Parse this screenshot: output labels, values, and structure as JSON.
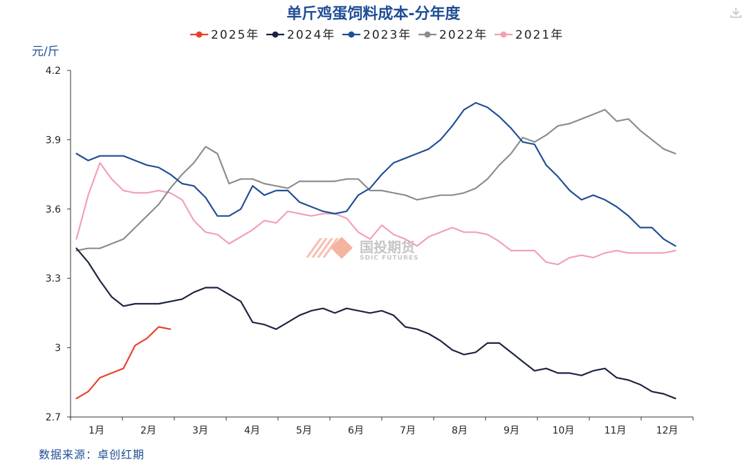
{
  "chart_data": {
    "type": "line",
    "title": "单斤鸡蛋饲料成本-分年度",
    "ylabel": "元/斤",
    "ylim": [
      2.7,
      4.2
    ],
    "yticks": [
      {
        "value": 4.2,
        "label": "4.2"
      },
      {
        "value": 3.9,
        "label": "3.9"
      },
      {
        "value": 3.6,
        "label": "3.6"
      },
      {
        "value": 3.3,
        "label": "3.3"
      },
      {
        "value": 3.0,
        "label": "3"
      },
      {
        "value": 2.7,
        "label": "2.7"
      }
    ],
    "x_weeks": 53,
    "months": [
      "1月",
      "2月",
      "3月",
      "4月",
      "5月",
      "6月",
      "7月",
      "8月",
      "9月",
      "10月",
      "11月",
      "12月"
    ],
    "legend_position": "top",
    "grid": false,
    "series": [
      {
        "name": "2025年",
        "color": "#e8402a",
        "values": [
          2.78,
          2.81,
          2.87,
          2.89,
          2.91,
          3.01,
          3.04,
          3.09,
          3.08
        ]
      },
      {
        "name": "2024年",
        "color": "#1c2340",
        "values": [
          3.43,
          3.37,
          3.29,
          3.22,
          3.18,
          3.19,
          3.19,
          3.19,
          3.2,
          3.21,
          3.24,
          3.26,
          3.26,
          3.23,
          3.2,
          3.11,
          3.1,
          3.08,
          3.11,
          3.14,
          3.16,
          3.17,
          3.15,
          3.17,
          3.16,
          3.15,
          3.16,
          3.14,
          3.09,
          3.08,
          3.06,
          3.03,
          2.99,
          2.97,
          2.98,
          3.02,
          3.02,
          2.98,
          2.94,
          2.9,
          2.91,
          2.89,
          2.89,
          2.88,
          2.9,
          2.91,
          2.87,
          2.86,
          2.84,
          2.81,
          2.8,
          2.78
        ]
      },
      {
        "name": "2023年",
        "color": "#1f4e96",
        "values": [
          3.84,
          3.81,
          3.83,
          3.83,
          3.83,
          3.81,
          3.79,
          3.78,
          3.75,
          3.71,
          3.7,
          3.65,
          3.57,
          3.57,
          3.6,
          3.7,
          3.66,
          3.68,
          3.68,
          3.63,
          3.61,
          3.59,
          3.58,
          3.59,
          3.66,
          3.69,
          3.75,
          3.8,
          3.82,
          3.84,
          3.86,
          3.9,
          3.96,
          4.03,
          4.06,
          4.04,
          4.0,
          3.95,
          3.89,
          3.88,
          3.79,
          3.74,
          3.68,
          3.64,
          3.66,
          3.64,
          3.61,
          3.57,
          3.52,
          3.52,
          3.47,
          3.44
        ]
      },
      {
        "name": "2022年",
        "color": "#8c8c8c",
        "values": [
          3.42,
          3.43,
          3.43,
          3.45,
          3.47,
          3.52,
          3.57,
          3.62,
          3.69,
          3.75,
          3.8,
          3.87,
          3.84,
          3.71,
          3.73,
          3.73,
          3.71,
          3.7,
          3.69,
          3.72,
          3.72,
          3.72,
          3.72,
          3.73,
          3.73,
          3.68,
          3.68,
          3.67,
          3.66,
          3.64,
          3.65,
          3.66,
          3.66,
          3.67,
          3.69,
          3.73,
          3.79,
          3.84,
          3.91,
          3.89,
          3.92,
          3.96,
          3.97,
          3.99,
          4.01,
          4.03,
          3.98,
          3.99,
          3.94,
          3.9,
          3.86,
          3.84
        ]
      },
      {
        "name": "2021年",
        "color": "#f2a0b4",
        "values": [
          3.47,
          3.66,
          3.8,
          3.73,
          3.68,
          3.67,
          3.67,
          3.68,
          3.67,
          3.64,
          3.55,
          3.5,
          3.49,
          3.45,
          3.48,
          3.51,
          3.55,
          3.54,
          3.59,
          3.58,
          3.57,
          3.58,
          3.58,
          3.56,
          3.5,
          3.47,
          3.53,
          3.49,
          3.47,
          3.44,
          3.48,
          3.5,
          3.52,
          3.5,
          3.5,
          3.49,
          3.46,
          3.42,
          3.42,
          3.42,
          3.37,
          3.36,
          3.39,
          3.4,
          3.39,
          3.41,
          3.42,
          3.41,
          3.41,
          3.41,
          3.41,
          3.42
        ]
      }
    ]
  },
  "source_label": "数据来源：卓创红期",
  "watermark": {
    "cn": "国投期货",
    "en": "SDIC FUTURES"
  },
  "icons": {
    "download": "download-icon"
  }
}
